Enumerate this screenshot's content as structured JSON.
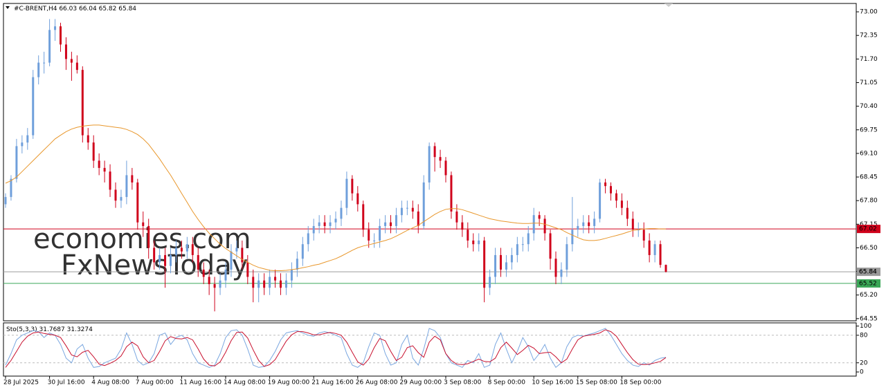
{
  "chart_data": {
    "type": "candlestick",
    "symbol": "#C-BRENT,H4",
    "watermark_1": "economies.com",
    "watermark_2": "FxNewsToday",
    "categories": [
      "28 Jul 2025",
      null,
      null,
      null,
      null,
      null,
      null,
      null,
      "30 Jul 16:00",
      null,
      null,
      null,
      null,
      null,
      null,
      null,
      "4 Aug 08:00",
      null,
      null,
      null,
      null,
      null,
      null,
      null,
      "7 Aug 00:00",
      null,
      null,
      null,
      null,
      null,
      null,
      null,
      "11 Aug 16:00",
      null,
      null,
      null,
      null,
      null,
      null,
      null,
      "14 Aug 08:00",
      null,
      null,
      null,
      null,
      null,
      null,
      null,
      "19 Aug 00:00",
      null,
      null,
      null,
      null,
      null,
      null,
      null,
      "21 Aug 16:00",
      null,
      null,
      null,
      null,
      null,
      null,
      null,
      "26 Aug 08:00",
      null,
      null,
      null,
      null,
      null,
      null,
      null,
      "29 Aug 00:00",
      null,
      null,
      null,
      null,
      null,
      null,
      null,
      "3 Sep 08:00",
      null,
      null,
      null,
      null,
      null,
      null,
      null,
      "8 Sep 00:00",
      null,
      null,
      null,
      null,
      null,
      null,
      null,
      "10 Sep 16:00",
      null,
      null,
      null,
      null,
      null,
      null,
      null,
      "15 Sep 08:00",
      null,
      null,
      null,
      null,
      null,
      null,
      null,
      "18 Sep 00:00",
      null,
      null,
      null,
      null,
      null,
      null,
      null,
      null
    ],
    "candles": {
      "up_color": "#6f9fdb",
      "down_color": "#d0021b",
      "open": [
        67.7,
        67.9,
        68.4,
        69.3,
        69.4,
        69.6,
        71.2,
        71.6,
        71.6,
        72.5,
        72.6,
        72.1,
        71.7,
        71.6,
        71.4,
        69.6,
        69.4,
        68.9,
        68.7,
        68.6,
        68.1,
        67.8,
        67.9,
        68.5,
        68.3,
        67.2,
        67.1,
        66.5,
        66.1,
        66.3,
        66.0,
        66.3,
        66.5,
        66.4,
        66.6,
        66.3,
        65.9,
        65.7,
        65.5,
        65.4,
        65.6,
        65.9,
        66.4,
        66.5,
        66.1,
        65.7,
        65.4,
        65.6,
        65.4,
        65.7,
        65.6,
        65.4,
        65.6,
        65.9,
        66.2,
        66.6,
        66.9,
        67.1,
        67.2,
        67.1,
        67.2,
        67.3,
        67.6,
        68.4,
        68.0,
        67.7,
        67.0,
        66.7,
        66.7,
        67.1,
        67.2,
        67.1,
        67.4,
        67.6,
        67.6,
        67.5,
        67.1,
        68.3,
        69.3,
        69.0,
        68.9,
        68.5,
        67.5,
        67.2,
        67.0,
        66.7,
        66.6,
        66.7,
        65.4,
        65.7,
        66.3,
        65.9,
        66.1,
        66.3,
        66.6,
        66.6,
        66.9,
        67.4,
        67.3,
        66.9,
        66.2,
        65.7,
        65.9,
        66.6,
        67.0,
        67.1,
        67.2,
        67.1,
        67.3,
        68.3,
        68.2,
        68.0,
        67.8,
        67.6,
        67.3,
        67.0,
        67.0,
        66.7,
        66.3,
        66.6,
        66.03
      ],
      "high": [
        68.0,
        68.5,
        69.5,
        69.6,
        69.8,
        71.4,
        71.8,
        71.9,
        72.8,
        72.8,
        72.7,
        72.3,
        71.9,
        71.8,
        71.5,
        69.8,
        69.6,
        69.1,
        68.9,
        68.8,
        68.3,
        68.1,
        68.9,
        68.7,
        68.4,
        67.5,
        67.3,
        66.7,
        66.5,
        66.5,
        66.5,
        66.7,
        66.7,
        66.8,
        66.8,
        66.5,
        66.1,
        65.9,
        65.7,
        65.8,
        66.1,
        66.6,
        66.7,
        66.7,
        66.3,
        65.9,
        65.8,
        65.8,
        65.9,
        65.9,
        65.8,
        65.8,
        66.1,
        66.4,
        66.8,
        67.1,
        67.3,
        67.4,
        67.4,
        67.4,
        67.5,
        67.8,
        68.6,
        68.5,
        68.2,
        67.8,
        67.2,
        66.9,
        67.3,
        67.4,
        67.4,
        67.6,
        67.8,
        67.8,
        67.8,
        67.7,
        68.5,
        69.4,
        69.4,
        69.2,
        69.0,
        68.6,
        67.7,
        67.4,
        67.2,
        66.9,
        66.9,
        66.8,
        65.9,
        66.5,
        66.5,
        66.3,
        66.5,
        66.8,
        66.8,
        67.1,
        67.6,
        67.5,
        67.4,
        67.0,
        66.4,
        66.1,
        66.8,
        67.9,
        67.3,
        67.4,
        67.4,
        67.5,
        68.4,
        68.4,
        68.3,
        68.1,
        68.0,
        67.8,
        67.5,
        67.2,
        67.2,
        66.9,
        66.7,
        66.7,
        66.04
      ],
      "low": [
        67.6,
        67.8,
        68.3,
        69.1,
        69.2,
        69.5,
        71.0,
        71.3,
        71.5,
        72.2,
        71.9,
        71.4,
        71.1,
        71.3,
        69.4,
        69.2,
        68.7,
        68.5,
        68.3,
        67.9,
        67.6,
        67.6,
        67.7,
        68.1,
        67.0,
        66.8,
        66.2,
        65.9,
        65.9,
        65.4,
        65.8,
        66.1,
        66.2,
        66.2,
        66.1,
        65.7,
        65.5,
        65.2,
        64.75,
        65.2,
        65.4,
        65.7,
        66.2,
        65.9,
        65.5,
        65.0,
        65.0,
        65.2,
        65.2,
        65.4,
        65.2,
        65.2,
        65.4,
        65.7,
        66.0,
        66.4,
        66.7,
        66.9,
        66.9,
        66.9,
        67.0,
        67.1,
        67.4,
        67.8,
        67.5,
        66.8,
        66.5,
        66.5,
        66.5,
        66.9,
        66.9,
        66.9,
        67.2,
        67.4,
        67.3,
        66.9,
        67.0,
        68.1,
        68.6,
        68.7,
        68.3,
        67.3,
        67.0,
        66.8,
        66.5,
        66.4,
        66.4,
        65.0,
        65.2,
        65.5,
        65.7,
        65.7,
        65.9,
        66.1,
        66.4,
        66.4,
        66.7,
        67.1,
        66.7,
        65.9,
        65.5,
        65.5,
        65.7,
        66.4,
        66.8,
        66.9,
        66.9,
        66.9,
        67.2,
        68.0,
        67.8,
        67.6,
        67.4,
        67.1,
        66.8,
        66.8,
        66.5,
        66.1,
        66.1,
        65.95,
        65.82
      ],
      "close": [
        67.9,
        68.4,
        69.3,
        69.4,
        69.6,
        71.2,
        71.6,
        71.6,
        72.5,
        72.6,
        72.1,
        71.7,
        71.6,
        71.4,
        69.6,
        69.4,
        68.9,
        68.7,
        68.6,
        68.1,
        67.8,
        67.9,
        68.5,
        68.3,
        67.2,
        67.1,
        66.5,
        66.1,
        66.3,
        66.0,
        66.3,
        66.5,
        66.4,
        66.6,
        66.3,
        65.9,
        65.7,
        65.5,
        65.4,
        65.6,
        65.9,
        66.4,
        66.5,
        66.1,
        65.7,
        65.4,
        65.6,
        65.4,
        65.7,
        65.6,
        65.4,
        65.6,
        65.9,
        66.2,
        66.6,
        66.9,
        67.1,
        67.2,
        67.1,
        67.2,
        67.3,
        67.6,
        68.4,
        68.0,
        67.7,
        67.0,
        66.7,
        66.7,
        67.1,
        67.2,
        67.1,
        67.4,
        67.6,
        67.6,
        67.5,
        67.1,
        68.3,
        69.3,
        69.0,
        68.9,
        68.5,
        67.5,
        67.2,
        67.0,
        66.7,
        66.6,
        66.7,
        65.4,
        65.7,
        66.3,
        65.9,
        66.1,
        66.3,
        66.6,
        66.6,
        66.9,
        67.4,
        67.3,
        66.9,
        66.2,
        65.7,
        65.9,
        66.6,
        67.0,
        67.1,
        67.2,
        67.1,
        67.3,
        68.3,
        68.2,
        68.0,
        67.8,
        67.6,
        67.3,
        67.0,
        67.0,
        66.7,
        66.3,
        66.6,
        66.03,
        65.84
      ]
    },
    "moving_average": {
      "color": "#e8962a",
      "values": [
        68.28,
        68.35,
        68.45,
        68.6,
        68.75,
        68.9,
        69.05,
        69.2,
        69.35,
        69.5,
        69.6,
        69.7,
        69.77,
        69.82,
        69.85,
        69.87,
        69.88,
        69.88,
        69.86,
        69.84,
        69.82,
        69.8,
        69.76,
        69.7,
        69.62,
        69.5,
        69.35,
        69.15,
        68.95,
        68.72,
        68.5,
        68.25,
        68.0,
        67.75,
        67.5,
        67.28,
        67.08,
        66.9,
        66.75,
        66.6,
        66.48,
        66.38,
        66.28,
        66.18,
        66.1,
        66.02,
        65.96,
        65.92,
        65.88,
        65.87,
        65.87,
        65.88,
        65.9,
        65.92,
        65.95,
        65.98,
        66.02,
        66.05,
        66.1,
        66.15,
        66.2,
        66.27,
        66.35,
        66.43,
        66.5,
        66.55,
        66.58,
        66.62,
        66.66,
        66.7,
        66.75,
        66.82,
        66.9,
        66.98,
        67.05,
        67.12,
        67.22,
        67.32,
        67.42,
        67.5,
        67.56,
        67.58,
        67.58,
        67.55,
        67.5,
        67.45,
        67.4,
        67.35,
        67.3,
        67.27,
        67.24,
        67.22,
        67.2,
        67.18,
        67.17,
        67.17,
        67.18,
        67.18,
        67.15,
        67.1,
        67.05,
        67.0,
        66.92,
        66.85,
        66.78,
        66.72,
        66.7,
        66.7,
        66.72,
        66.76,
        66.8,
        66.84,
        66.88,
        66.93,
        66.98,
        67.0,
        67.02,
        67.03,
        67.03,
        67.02,
        67.02
      ]
    },
    "current_price_color": "#9a9a9a",
    "hlines": [
      {
        "value": 67.02,
        "color": "#d0021b"
      },
      {
        "value": 65.52,
        "color": "#3aa757"
      }
    ],
    "ylim": [
      64.49,
      73.23
    ],
    "yticks": [
      {
        "value": 73,
        "label": "73.00"
      },
      72.35,
      {
        "value": 71.7,
        "label": "71.70"
      },
      71.05,
      {
        "value": 70.4,
        "label": "70.40"
      },
      69.75,
      {
        "value": 69.1,
        "label": "69.10"
      },
      68.45,
      {
        "value": 67.8,
        "label": "67.80"
      },
      67.15,
      {
        "value": 66.5,
        "label": "66.50"
      },
      65.85,
      {
        "value": 65.2,
        "label": "65.20"
      },
      64.55
    ],
    "stochastic": {
      "name": "Sto(5,3,3)",
      "ylim": [
        -9,
        107
      ],
      "yticks": [
        100,
        80,
        20,
        0
      ],
      "levels": [
        80,
        20
      ],
      "series": [
        {
          "color": "#7aa7e0",
          "values": [
            15,
            40,
            70,
            80,
            85,
            90,
            88,
            75,
            85,
            80,
            60,
            30,
            20,
            50,
            60,
            30,
            10,
            12,
            20,
            25,
            30,
            50,
            85,
            60,
            25,
            15,
            20,
            40,
            80,
            85,
            60,
            75,
            80,
            70,
            40,
            20,
            15,
            10,
            15,
            40,
            75,
            90,
            92,
            80,
            50,
            15,
            10,
            12,
            25,
            45,
            70,
            85,
            88,
            90,
            85,
            80,
            78,
            85,
            88,
            85,
            80,
            75,
            40,
            15,
            10,
            20,
            55,
            85,
            80,
            40,
            15,
            20,
            60,
            80,
            30,
            15,
            50,
            95,
            90,
            75,
            40,
            20,
            15,
            10,
            25,
            20,
            40,
            10,
            15,
            60,
            85,
            50,
            20,
            45,
            75,
            55,
            25,
            40,
            60,
            30,
            10,
            20,
            55,
            75,
            80,
            78,
            82,
            85,
            90,
            95,
            80,
            60,
            40,
            25,
            15,
            12,
            20,
            15,
            25,
            30,
            31.7687
          ]
        },
        {
          "color": "#c8102e",
          "values": [
            10,
            25,
            45,
            65,
            78,
            85,
            87,
            84,
            82,
            80,
            75,
            57,
            37,
            33,
            43,
            47,
            33,
            17,
            14,
            19,
            25,
            35,
            55,
            65,
            57,
            33,
            20,
            25,
            45,
            68,
            77,
            73,
            72,
            75,
            70,
            50,
            28,
            15,
            13,
            22,
            43,
            68,
            86,
            87,
            74,
            48,
            25,
            12,
            16,
            27,
            47,
            67,
            81,
            88,
            88,
            85,
            81,
            81,
            84,
            86,
            84,
            80,
            65,
            43,
            22,
            15,
            28,
            53,
            73,
            68,
            45,
            25,
            32,
            53,
            57,
            42,
            32,
            65,
            78,
            70,
            40,
            25,
            17,
            16,
            18,
            23,
            28,
            23,
            22,
            30,
            53,
            65,
            52,
            38,
            47,
            58,
            52,
            40,
            42,
            43,
            33,
            20,
            28,
            50,
            70,
            78,
            80,
            82,
            85,
            92,
            88,
            78,
            60,
            42,
            27,
            17,
            16,
            17,
            20,
            23,
            31.3274
          ]
        }
      ]
    }
  }
}
